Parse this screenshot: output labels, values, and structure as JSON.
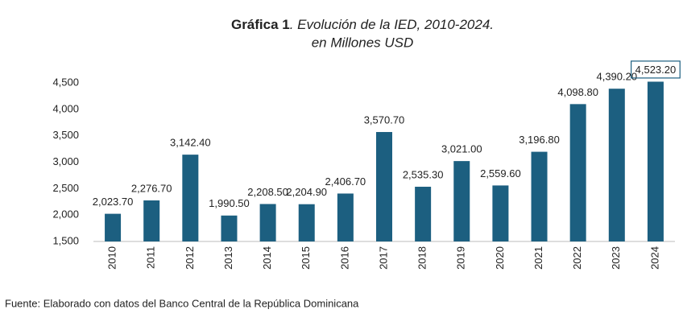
{
  "chart_data": {
    "type": "bar",
    "title": [
      "Gráfica 1",
      ". Evolución de la IED, 2010-2024."
    ],
    "subtitle": "en Millones USD",
    "categories": [
      "2010",
      "2011",
      "2012",
      "2013",
      "2014",
      "2015",
      "2016",
      "2017",
      "2018",
      "2019",
      "2020",
      "2021",
      "2022",
      "2023",
      "2024"
    ],
    "values": [
      2023.7,
      2276.7,
      3142.4,
      1990.5,
      2208.5,
      2204.9,
      2406.7,
      3570.7,
      2535.3,
      3021.0,
      2559.6,
      3196.8,
      4098.8,
      4390.2,
      4523.2
    ],
    "value_labels": [
      "2,023.70",
      "2,276.70",
      "3,142.40",
      "1,990.50",
      "2,208.50",
      "2,204.90",
      "2,406.70",
      "3,570.70",
      "2,535.30",
      "3,021.00",
      "2,559.60",
      "3,196.80",
      "4,098.80",
      "4,390.20",
      "4,523.20"
    ],
    "color": "#1c5f80",
    "ylim": [
      1500,
      4500
    ],
    "yticks": [
      {
        "value": 1500,
        "label": "1,500"
      },
      {
        "value": 2000,
        "label": "2,000"
      },
      {
        "value": 2500,
        "label": "2,500"
      },
      {
        "value": 3000,
        "label": "3,000"
      },
      {
        "value": 3500,
        "label": "3,500"
      },
      {
        "value": 4000,
        "label": "4,000"
      },
      {
        "value": 4500,
        "label": "4,500"
      }
    ],
    "grid": false,
    "source": "Fuente: Elaborado con datos del Banco Central de la República Dominicana"
  }
}
